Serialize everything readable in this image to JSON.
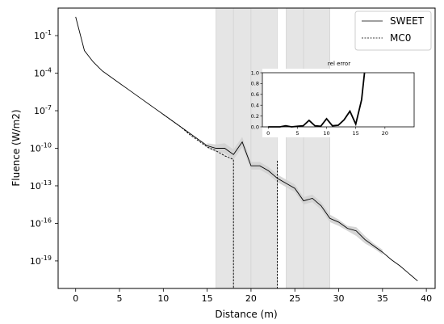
{
  "chart_data": [
    {
      "type": "line",
      "xlabel": "Distance (m)",
      "ylabel": "Fluence (W/m2)",
      "xlim": [
        -2,
        41
      ],
      "ylim_log10": [
        -21.2,
        1.2
      ],
      "y_scale": "log",
      "x_ticks": [
        0,
        5,
        10,
        15,
        20,
        25,
        30,
        35,
        40
      ],
      "y_ticks": [
        {
          "exp": -1,
          "label": "10^-1"
        },
        {
          "exp": -4,
          "label": "10^-4"
        },
        {
          "exp": -7,
          "label": "10^-7"
        },
        {
          "exp": -10,
          "label": "10^-10"
        },
        {
          "exp": -13,
          "label": "10^-13"
        },
        {
          "exp": -16,
          "label": "10^-16"
        },
        {
          "exp": -19,
          "label": "10^-19"
        }
      ],
      "legend": {
        "placement": "top-right",
        "entries": [
          "SWEET",
          "MC0"
        ]
      },
      "series": [
        {
          "name": "SWEET",
          "style": "solid",
          "x": [
            0,
            1,
            2,
            3,
            4,
            5,
            6,
            7,
            8,
            9,
            10,
            11,
            12,
            13,
            14,
            15,
            16,
            17,
            18,
            19,
            20,
            21,
            22,
            23,
            24,
            25,
            26,
            27,
            28,
            29,
            30,
            31,
            32,
            33,
            34,
            35,
            36,
            37,
            38,
            39
          ],
          "log10_y": [
            0.5,
            -2.2,
            -3.1,
            -3.8,
            -4.3,
            -4.8,
            -5.3,
            -5.8,
            -6.3,
            -6.8,
            -7.3,
            -7.8,
            -8.3,
            -8.8,
            -9.3,
            -9.8,
            -10.0,
            -10.0,
            -10.5,
            -9.5,
            -11.4,
            -11.4,
            -11.8,
            -12.4,
            -12.8,
            -13.2,
            -14.2,
            -14.0,
            -14.6,
            -15.6,
            -15.9,
            -16.4,
            -16.6,
            -17.3,
            -17.8,
            -18.3,
            -18.9,
            -19.4,
            -20.0,
            -20.6
          ]
        },
        {
          "name": "MC0",
          "style": "dashed",
          "x": [
            10,
            11,
            12,
            13,
            14,
            15,
            16,
            17,
            18,
            18,
            19,
            20,
            21,
            22,
            23,
            23
          ],
          "log10_y": [
            -7.3,
            -7.8,
            -8.3,
            -8.9,
            -9.4,
            -9.9,
            -10.2,
            -10.6,
            -10.9,
            -21.2,
            null,
            null,
            null,
            null,
            -11.0,
            -21.2
          ]
        }
      ],
      "uncertainty_band": {
        "x": [
          15,
          16,
          17,
          18,
          19,
          20,
          21,
          22,
          23,
          24,
          25,
          26,
          27,
          28,
          29,
          30,
          31,
          32,
          33,
          34,
          35
        ],
        "log10_upper": [
          -9.6,
          -9.7,
          -9.6,
          -10.1,
          -9.1,
          -11.1,
          -11.1,
          -11.5,
          -12.1,
          -12.5,
          -12.9,
          -13.9,
          -13.7,
          -14.3,
          -15.3,
          -15.7,
          -16.2,
          -16.3,
          -17.0,
          -17.6,
          -18.1
        ],
        "log10_lower": [
          -10.0,
          -10.3,
          -10.4,
          -10.9,
          -9.9,
          -11.7,
          -11.7,
          -12.1,
          -12.7,
          -13.1,
          -13.5,
          -14.5,
          -14.3,
          -14.9,
          -15.9,
          -16.2,
          -16.6,
          -17.0,
          -17.6,
          -18.0,
          -18.5
        ]
      },
      "shaded_regions": [
        {
          "x0": 16,
          "x1": 18
        },
        {
          "x0": 18,
          "x1": 20
        },
        {
          "x0": 20,
          "x1": 23
        },
        {
          "x0": 24,
          "x1": 26
        },
        {
          "x0": 26,
          "x1": 29
        }
      ]
    },
    {
      "type": "line",
      "title": "rel error",
      "xlim": [
        -1,
        25
      ],
      "ylim": [
        0,
        1.0
      ],
      "x_ticks": [
        0,
        5,
        10,
        15,
        20
      ],
      "y_ticks": [
        0.0,
        0.2,
        0.4,
        0.6,
        0.8,
        1.0
      ],
      "y_tick_labels": [
        "0.0",
        "0.2",
        "0.4",
        "0.6",
        "0.8",
        "1.0"
      ],
      "series": [
        {
          "x": [
            0,
            1,
            2,
            3,
            4,
            5,
            6,
            7,
            8,
            9,
            10,
            11,
            12,
            13,
            14,
            15,
            16,
            16.5
          ],
          "y": [
            0.0,
            0.0,
            0.0,
            0.02,
            0.0,
            0.01,
            0.02,
            0.12,
            0.02,
            0.01,
            0.15,
            0.02,
            0.03,
            0.13,
            0.29,
            0.05,
            0.5,
            1.0
          ]
        }
      ]
    }
  ]
}
